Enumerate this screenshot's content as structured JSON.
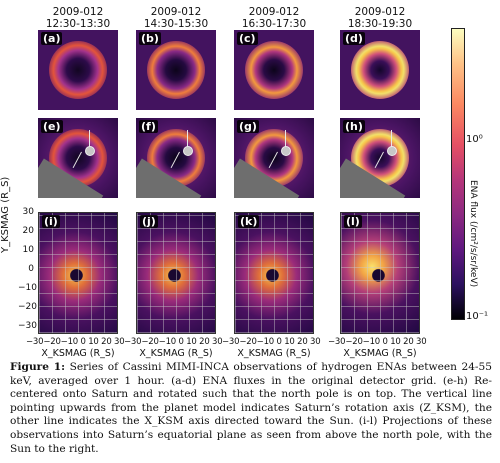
{
  "columns": [
    {
      "date": "2009-012",
      "time": "12:30-13:30"
    },
    {
      "date": "2009-012",
      "time": "14:30-15:30"
    },
    {
      "date": "2009-012",
      "time": "16:30-17:30"
    },
    {
      "date": "2009-012",
      "time": "18:30-19:30"
    }
  ],
  "panel_labels": {
    "row1": [
      "(a)",
      "(b)",
      "(c)",
      "(d)"
    ],
    "row2": [
      "(e)",
      "(f)",
      "(g)",
      "(h)"
    ],
    "row3": [
      "(i)",
      "(j)",
      "(k)",
      "(l)"
    ]
  },
  "axes": {
    "ylabel": "Y_KSMAG (R_S)",
    "yticks": [
      "30",
      "20",
      "10",
      "0",
      "−10",
      "−20",
      "−30"
    ],
    "xticks": "−30−20−10  0  10  20  30",
    "xlabel": "X_KSMAG (R_S)"
  },
  "colorbar": {
    "label": "ENA flux (/cm²/s/sr/keV)",
    "tick_high": "10⁰",
    "tick_low": "10⁻¹",
    "colormap": "magma"
  },
  "caption": {
    "figure_label": "Figure 1:",
    "text": "Series of Cassini MIMI-INCA observations of hydrogen ENAs between 24-55 keV, averaged over 1 hour. (a-d) ENA fluxes in the original detector grid. (e-h) Re-centered onto Saturn and rotated such that the north pole is on top. The vertical line pointing upwards from the planet model indicates Saturn’s rotation axis (Z_KSM), the other line indicates the X_KSM axis directed toward the Sun. (i-l) Projections of these observations into Saturn’s equatorial plane as seen from above the north pole, with the Sun to the right."
  }
}
